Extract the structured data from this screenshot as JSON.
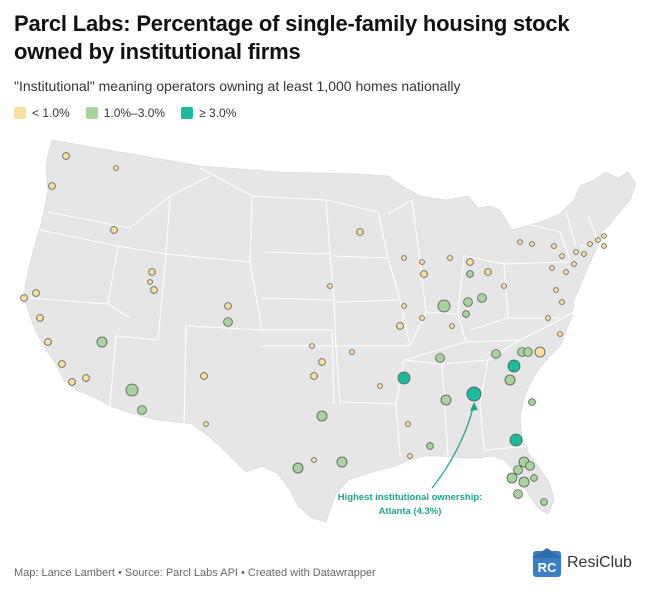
{
  "title": "Parcl Labs: Percentage of single-family housing stock owned by institutional firms",
  "subtitle": "\"Institutional\" meaning operators owning at least 1,000 homes nationally",
  "legend": [
    {
      "label": "< 1.0%",
      "color": "#f7e09c"
    },
    {
      "label": "1.0%–3.0%",
      "color": "#a6d49c"
    },
    {
      "label": "≥ 3.0%",
      "color": "#1abc9c"
    }
  ],
  "annotation": {
    "line1": "Highest institutional ownership:",
    "line2": "Atlanta (4.3%)"
  },
  "footer": "Map: Lance Lambert • Source: Parcl Labs API • Created with Datawrapper",
  "brand": {
    "name": "ResiClub",
    "icon_text": "RC",
    "color": "#3a7fc1"
  },
  "colors": {
    "land": "#e6e6e6",
    "border": "#ffffff",
    "low": "#f7e09c",
    "mid": "#a6d49c",
    "high": "#1abc9c",
    "accent": "#1fa58e"
  }
}
